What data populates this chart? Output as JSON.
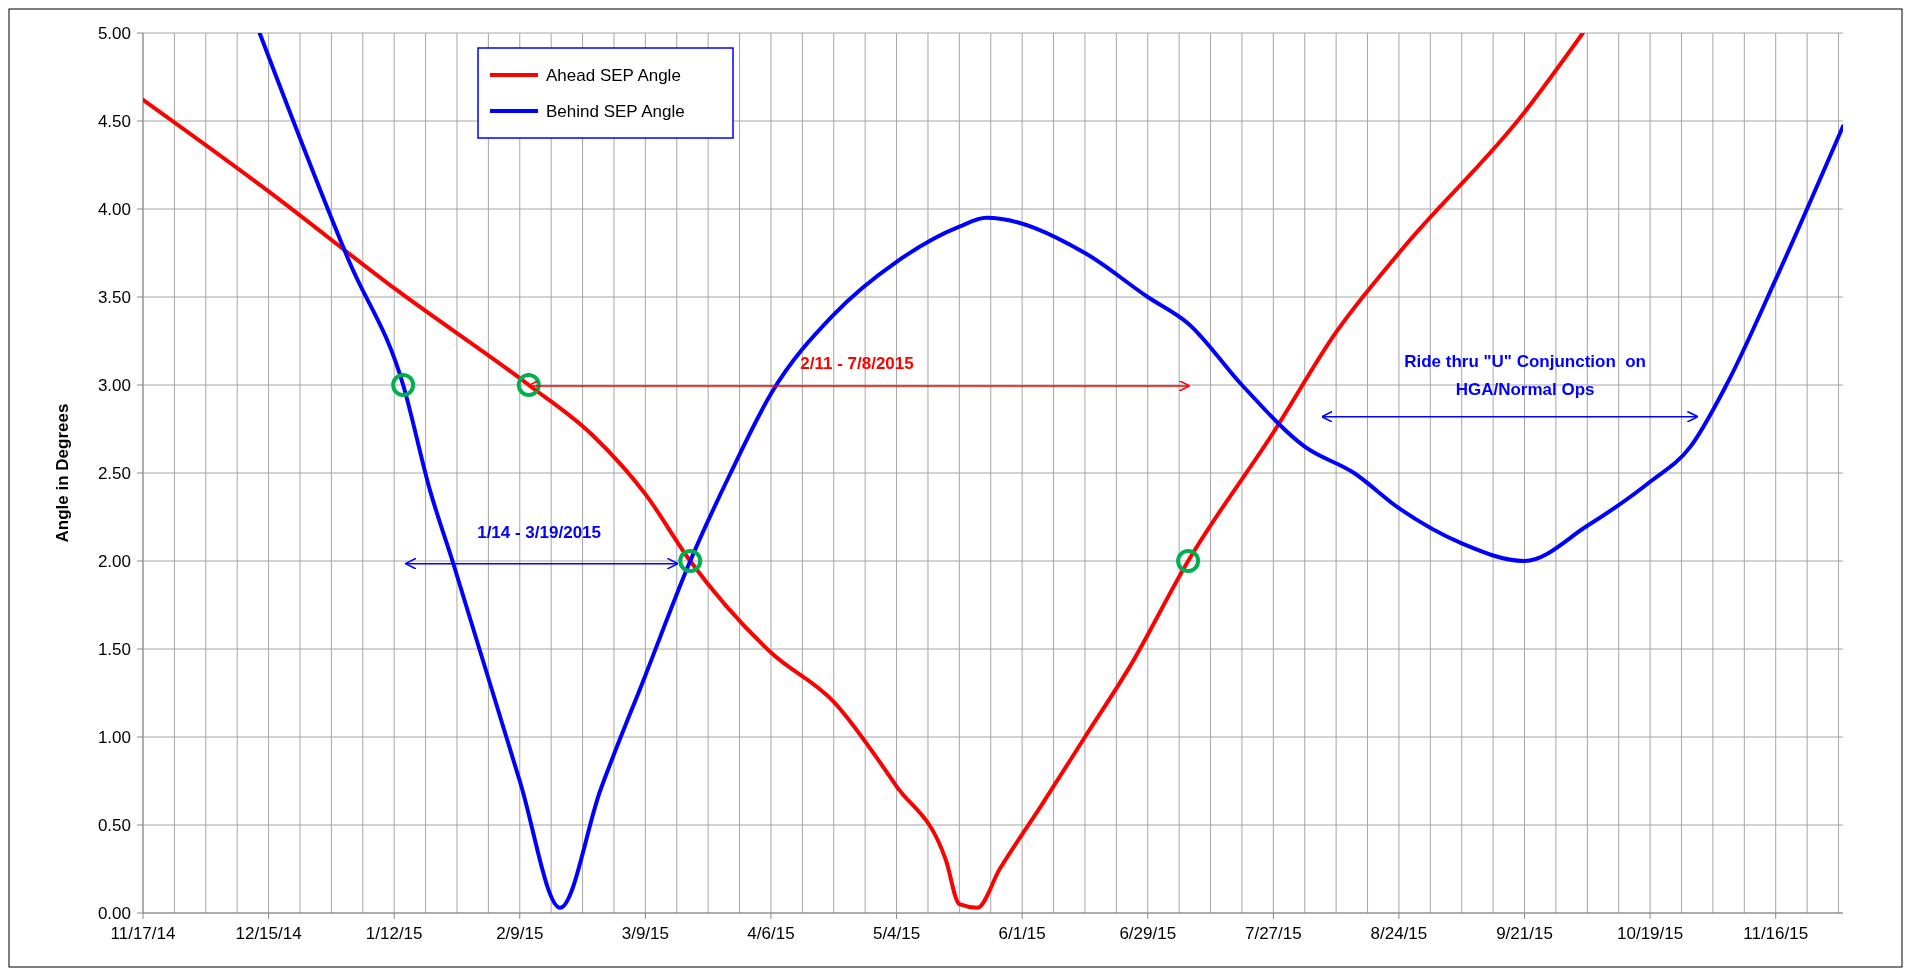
{
  "chart_data": {
    "type": "line",
    "ylabel": "Angle in Degrees",
    "xlim": [
      "2014-11-17",
      "2015-12-01"
    ],
    "xticks": [
      {
        "value": "2014-11-17",
        "label": "11/17/14"
      },
      {
        "value": "2014-12-15",
        "label": "12/15/14"
      },
      {
        "value": "2015-01-12",
        "label": "1/12/15"
      },
      {
        "value": "2015-02-09",
        "label": "2/9/15"
      },
      {
        "value": "2015-03-09",
        "label": "3/9/15"
      },
      {
        "value": "2015-04-06",
        "label": "4/6/15"
      },
      {
        "value": "2015-05-04",
        "label": "5/4/15"
      },
      {
        "value": "2015-06-01",
        "label": "6/1/15"
      },
      {
        "value": "2015-06-29",
        "label": "6/29/15"
      },
      {
        "value": "2015-07-27",
        "label": "7/27/15"
      },
      {
        "value": "2015-08-24",
        "label": "8/24/15"
      },
      {
        "value": "2015-09-21",
        "label": "9/21/15"
      },
      {
        "value": "2015-10-19",
        "label": "10/19/15"
      },
      {
        "value": "2015-11-16",
        "label": "11/16/15"
      }
    ],
    "ylim": [
      0,
      5
    ],
    "yticks": [
      {
        "value": 0,
        "label": "0.00"
      },
      {
        "value": 0.5,
        "label": "0.50"
      },
      {
        "value": 1,
        "label": "1.00"
      },
      {
        "value": 1.5,
        "label": "1.50"
      },
      {
        "value": 2,
        "label": "2.00"
      },
      {
        "value": 2.5,
        "label": "2.50"
      },
      {
        "value": 3,
        "label": "3.00"
      },
      {
        "value": 3.5,
        "label": "3.50"
      },
      {
        "value": 4,
        "label": "4.00"
      },
      {
        "value": 4.5,
        "label": "4.50"
      },
      {
        "value": 5,
        "label": "5.00"
      }
    ],
    "grid": true,
    "legend": "top left",
    "line_style": "solid",
    "series": [
      {
        "name": "Ahead SEP Angle",
        "color": "#ff0000",
        "x": [
          "2014-11-17",
          "2014-12-15",
          "2015-01-12",
          "2015-02-11",
          "2015-02-25",
          "2015-03-09",
          "2015-03-19",
          "2015-04-06",
          "2015-04-20",
          "2015-05-04",
          "2015-05-15",
          "2015-05-18",
          "2015-05-22",
          "2015-05-27",
          "2015-06-05",
          "2015-06-15",
          "2015-06-25",
          "2015-07-08",
          "2015-07-27",
          "2015-08-10",
          "2015-08-24",
          "2015-09-21",
          "2015-10-04"
        ],
        "values": [
          4.62,
          4.1,
          3.55,
          3.0,
          2.72,
          2.38,
          2.0,
          1.48,
          1.2,
          0.72,
          0.3,
          0.05,
          0.03,
          0.25,
          0.6,
          1.0,
          1.4,
          2.0,
          2.73,
          3.3,
          3.75,
          4.55,
          5.0
        ]
      },
      {
        "name": "Behind SEP Angle",
        "color": "#0000ff",
        "x": [
          "2014-12-13",
          "2015-01-02",
          "2015-01-14",
          "2015-01-20",
          "2015-01-25",
          "2015-02-09",
          "2015-02-18",
          "2015-02-27",
          "2015-03-09",
          "2015-03-19",
          "2015-03-28",
          "2015-04-06",
          "2015-04-20",
          "2015-05-04",
          "2015-05-18",
          "2015-05-24",
          "2015-06-15",
          "2015-06-29",
          "2015-07-08",
          "2015-07-20",
          "2015-08-03",
          "2015-08-14",
          "2015-08-24",
          "2015-09-07",
          "2015-09-21",
          "2015-10-05",
          "2015-10-19",
          "2015-10-28",
          "2015-11-05",
          "2015-11-16",
          "2015-12-01"
        ],
        "values": [
          5.0,
          3.7,
          3.0,
          2.4,
          2.0,
          0.75,
          0.03,
          0.7,
          1.35,
          2.0,
          2.5,
          2.95,
          3.4,
          3.7,
          3.9,
          3.95,
          3.75,
          3.5,
          3.35,
          3.0,
          2.65,
          2.5,
          2.3,
          2.1,
          2.0,
          2.2,
          2.45,
          2.65,
          3.0,
          3.6,
          4.47
        ]
      },
      {
        "type": "scatter",
        "marker": "circle",
        "color": "#00b050",
        "x": [
          "2015-01-14",
          "2015-02-11",
          "2015-03-19",
          "2015-07-08"
        ],
        "values": [
          3.0,
          3.0,
          2.0,
          2.0
        ]
      }
    ],
    "annotations": [
      "2/11 - 7/8/2015",
      "1/14 - 3/19/2015",
      "Ride thru \"U\" Conjunction  on\nHGA/Normal Ops"
    ]
  }
}
